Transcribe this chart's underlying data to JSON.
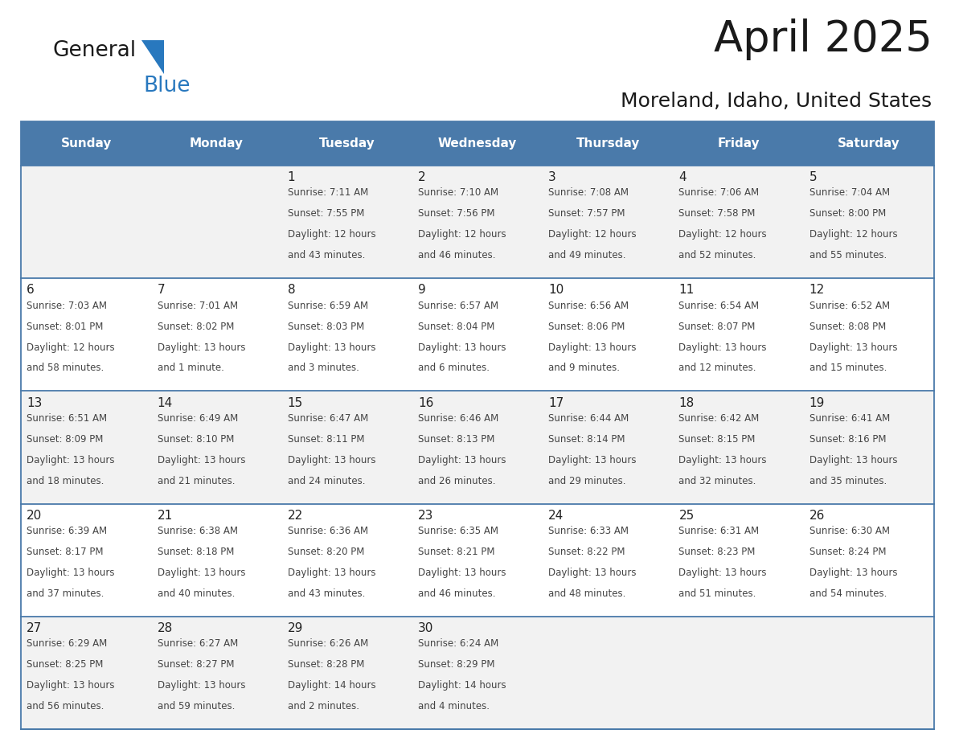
{
  "title": "April 2025",
  "subtitle": "Moreland, Idaho, United States",
  "header_bg_color": "#4a7aaa",
  "header_text_color": "#ffffff",
  "row_colors": [
    "#f2f2f2",
    "#ffffff",
    "#f2f2f2",
    "#ffffff",
    "#f2f2f2"
  ],
  "cell_text_color": "#444444",
  "day_num_color": "#222222",
  "grid_line_color": "#4a7aaa",
  "days_of_week": [
    "Sunday",
    "Monday",
    "Tuesday",
    "Wednesday",
    "Thursday",
    "Friday",
    "Saturday"
  ],
  "weeks": [
    [
      {
        "day": "",
        "info": ""
      },
      {
        "day": "",
        "info": ""
      },
      {
        "day": "1",
        "info": "Sunrise: 7:11 AM\nSunset: 7:55 PM\nDaylight: 12 hours\nand 43 minutes."
      },
      {
        "day": "2",
        "info": "Sunrise: 7:10 AM\nSunset: 7:56 PM\nDaylight: 12 hours\nand 46 minutes."
      },
      {
        "day": "3",
        "info": "Sunrise: 7:08 AM\nSunset: 7:57 PM\nDaylight: 12 hours\nand 49 minutes."
      },
      {
        "day": "4",
        "info": "Sunrise: 7:06 AM\nSunset: 7:58 PM\nDaylight: 12 hours\nand 52 minutes."
      },
      {
        "day": "5",
        "info": "Sunrise: 7:04 AM\nSunset: 8:00 PM\nDaylight: 12 hours\nand 55 minutes."
      }
    ],
    [
      {
        "day": "6",
        "info": "Sunrise: 7:03 AM\nSunset: 8:01 PM\nDaylight: 12 hours\nand 58 minutes."
      },
      {
        "day": "7",
        "info": "Sunrise: 7:01 AM\nSunset: 8:02 PM\nDaylight: 13 hours\nand 1 minute."
      },
      {
        "day": "8",
        "info": "Sunrise: 6:59 AM\nSunset: 8:03 PM\nDaylight: 13 hours\nand 3 minutes."
      },
      {
        "day": "9",
        "info": "Sunrise: 6:57 AM\nSunset: 8:04 PM\nDaylight: 13 hours\nand 6 minutes."
      },
      {
        "day": "10",
        "info": "Sunrise: 6:56 AM\nSunset: 8:06 PM\nDaylight: 13 hours\nand 9 minutes."
      },
      {
        "day": "11",
        "info": "Sunrise: 6:54 AM\nSunset: 8:07 PM\nDaylight: 13 hours\nand 12 minutes."
      },
      {
        "day": "12",
        "info": "Sunrise: 6:52 AM\nSunset: 8:08 PM\nDaylight: 13 hours\nand 15 minutes."
      }
    ],
    [
      {
        "day": "13",
        "info": "Sunrise: 6:51 AM\nSunset: 8:09 PM\nDaylight: 13 hours\nand 18 minutes."
      },
      {
        "day": "14",
        "info": "Sunrise: 6:49 AM\nSunset: 8:10 PM\nDaylight: 13 hours\nand 21 minutes."
      },
      {
        "day": "15",
        "info": "Sunrise: 6:47 AM\nSunset: 8:11 PM\nDaylight: 13 hours\nand 24 minutes."
      },
      {
        "day": "16",
        "info": "Sunrise: 6:46 AM\nSunset: 8:13 PM\nDaylight: 13 hours\nand 26 minutes."
      },
      {
        "day": "17",
        "info": "Sunrise: 6:44 AM\nSunset: 8:14 PM\nDaylight: 13 hours\nand 29 minutes."
      },
      {
        "day": "18",
        "info": "Sunrise: 6:42 AM\nSunset: 8:15 PM\nDaylight: 13 hours\nand 32 minutes."
      },
      {
        "day": "19",
        "info": "Sunrise: 6:41 AM\nSunset: 8:16 PM\nDaylight: 13 hours\nand 35 minutes."
      }
    ],
    [
      {
        "day": "20",
        "info": "Sunrise: 6:39 AM\nSunset: 8:17 PM\nDaylight: 13 hours\nand 37 minutes."
      },
      {
        "day": "21",
        "info": "Sunrise: 6:38 AM\nSunset: 8:18 PM\nDaylight: 13 hours\nand 40 minutes."
      },
      {
        "day": "22",
        "info": "Sunrise: 6:36 AM\nSunset: 8:20 PM\nDaylight: 13 hours\nand 43 minutes."
      },
      {
        "day": "23",
        "info": "Sunrise: 6:35 AM\nSunset: 8:21 PM\nDaylight: 13 hours\nand 46 minutes."
      },
      {
        "day": "24",
        "info": "Sunrise: 6:33 AM\nSunset: 8:22 PM\nDaylight: 13 hours\nand 48 minutes."
      },
      {
        "day": "25",
        "info": "Sunrise: 6:31 AM\nSunset: 8:23 PM\nDaylight: 13 hours\nand 51 minutes."
      },
      {
        "day": "26",
        "info": "Sunrise: 6:30 AM\nSunset: 8:24 PM\nDaylight: 13 hours\nand 54 minutes."
      }
    ],
    [
      {
        "day": "27",
        "info": "Sunrise: 6:29 AM\nSunset: 8:25 PM\nDaylight: 13 hours\nand 56 minutes."
      },
      {
        "day": "28",
        "info": "Sunrise: 6:27 AM\nSunset: 8:27 PM\nDaylight: 13 hours\nand 59 minutes."
      },
      {
        "day": "29",
        "info": "Sunrise: 6:26 AM\nSunset: 8:28 PM\nDaylight: 14 hours\nand 2 minutes."
      },
      {
        "day": "30",
        "info": "Sunrise: 6:24 AM\nSunset: 8:29 PM\nDaylight: 14 hours\nand 4 minutes."
      },
      {
        "day": "",
        "info": ""
      },
      {
        "day": "",
        "info": ""
      },
      {
        "day": "",
        "info": ""
      }
    ]
  ],
  "logo_color_general": "#1a1a1a",
  "logo_color_blue": "#2878be",
  "logo_triangle_color": "#2878be",
  "title_fontsize": 38,
  "subtitle_fontsize": 18,
  "header_fontsize": 11,
  "day_num_fontsize": 11,
  "info_fontsize": 8.5
}
